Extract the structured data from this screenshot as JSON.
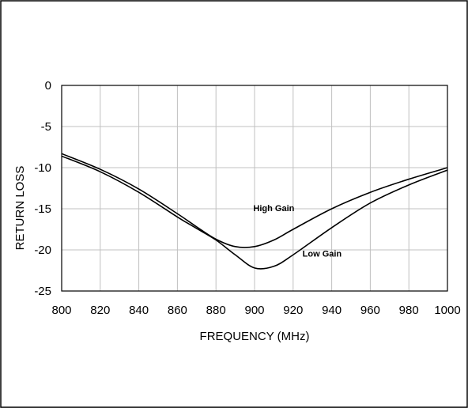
{
  "colors": {
    "background": "#ffffff",
    "line": "#000000",
    "grid": "#c0c0c0"
  },
  "chart_data": {
    "type": "line",
    "title": "",
    "xlabel": "FREQUENCY  (MHz)",
    "ylabel": "RETURN LOSS",
    "xlim": [
      800,
      1000
    ],
    "ylim": [
      -25,
      0
    ],
    "xticks": [
      800,
      820,
      840,
      860,
      880,
      900,
      920,
      940,
      960,
      980,
      1000
    ],
    "yticks": [
      0,
      -5,
      -10,
      -15,
      -20,
      -25
    ],
    "xtick_labels": [
      "800",
      "820",
      "840",
      "860",
      "880",
      "900",
      "920",
      "940",
      "960",
      "980",
      "1000"
    ],
    "ytick_labels": [
      "0",
      "-5",
      "-10",
      "-15",
      "-20",
      "-25"
    ],
    "grid": true,
    "legend": "none",
    "series": [
      {
        "name": "High Gain",
        "x": [
          800,
          820,
          840,
          860,
          870,
          880,
          890,
          900,
          910,
          920,
          940,
          960,
          980,
          1000
        ],
        "y": [
          -8.3,
          -10.2,
          -12.6,
          -15.6,
          -17.2,
          -18.7,
          -19.6,
          -19.6,
          -18.8,
          -17.5,
          -15.0,
          -13.0,
          -11.4,
          -10.0
        ]
      },
      {
        "name": "Low Gain",
        "x": [
          800,
          820,
          840,
          860,
          870,
          880,
          890,
          900,
          910,
          920,
          940,
          960,
          980,
          1000
        ],
        "y": [
          -8.6,
          -10.5,
          -13.0,
          -16.0,
          -17.4,
          -18.8,
          -20.6,
          -22.2,
          -22.0,
          -20.6,
          -17.3,
          -14.3,
          -12.1,
          -10.3
        ]
      }
    ],
    "annotations": [
      {
        "text": "High Gain",
        "x": 910,
        "y": -15.3
      },
      {
        "text": "Low Gain",
        "x": 935,
        "y": -20.8
      }
    ]
  }
}
